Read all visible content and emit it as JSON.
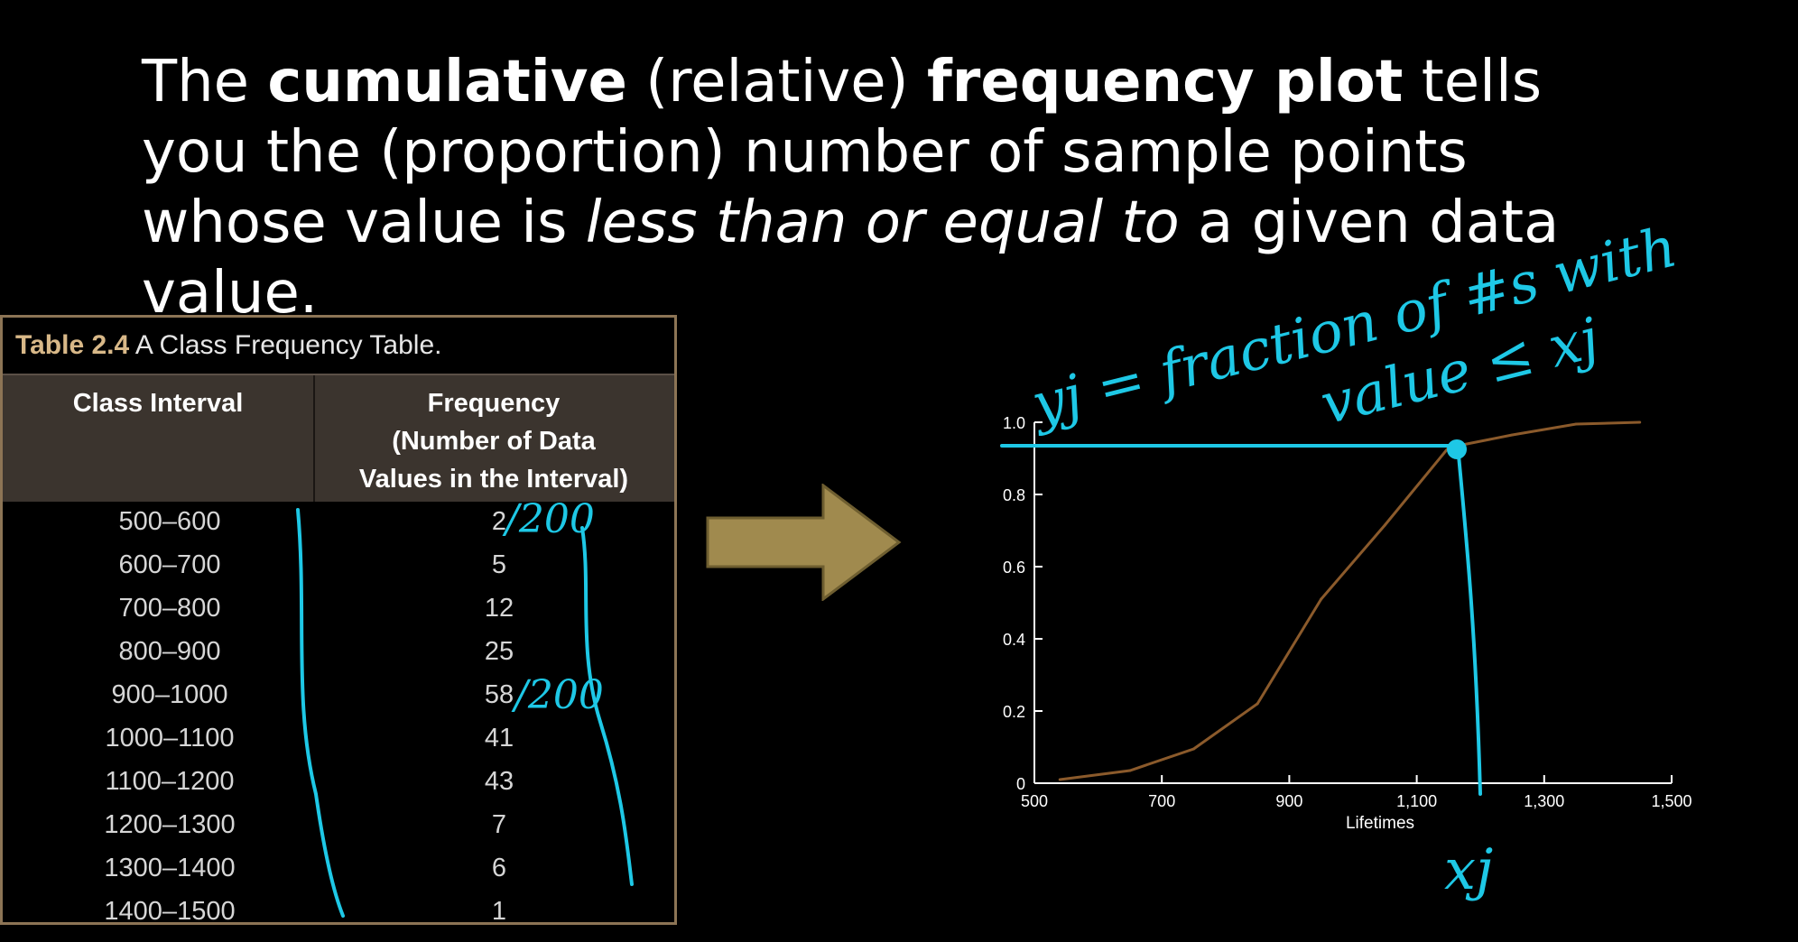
{
  "headline": {
    "p1": "The ",
    "b1": "cumulative",
    "p2": " (relative) ",
    "b2": "frequency plot",
    "p3": " tells you the (proportion) number of sample points whose value is ",
    "i1": "less than or equal to",
    "p4": " a given data value."
  },
  "table": {
    "caption_number": "Table 2.4",
    "caption_text": " A Class Frequency Table.",
    "col1_header": "Class Interval",
    "col2_header_l1": "Frequency",
    "col2_header_l2": "(Number of Data",
    "col2_header_l3": "Values in the Interval)",
    "rows": [
      {
        "interval": "500–600",
        "frequency": "2"
      },
      {
        "interval": "600–700",
        "frequency": "5"
      },
      {
        "interval": "700–800",
        "frequency": "12"
      },
      {
        "interval": "800–900",
        "frequency": "25"
      },
      {
        "interval": "900–1000",
        "frequency": "58"
      },
      {
        "interval": "1000–1100",
        "frequency": "41"
      },
      {
        "interval": "1100–1200",
        "frequency": "43"
      },
      {
        "interval": "1200–1300",
        "frequency": "7"
      },
      {
        "interval": "1300–1400",
        "frequency": "6"
      },
      {
        "interval": "1400–1500",
        "frequency": "1"
      }
    ]
  },
  "handwriting": {
    "n200_a": "/200",
    "n200_b": "/200",
    "yj_def_1": "yj = fraction of #s with",
    "yj_def_2": "value ≤ xj",
    "xj": "xj"
  },
  "colors": {
    "ink": "#1ec8e6",
    "curve": "#8b5a2b",
    "arrow": "#a08a4e",
    "table_border": "#8c7455"
  },
  "chart_data": {
    "type": "line",
    "xlabel": "Lifetimes",
    "ylabel": "",
    "x": [
      540,
      650,
      750,
      850,
      950,
      1050,
      1150,
      1250,
      1350,
      1450
    ],
    "y": [
      0.01,
      0.035,
      0.095,
      0.22,
      0.51,
      0.715,
      0.93,
      0.965,
      0.995,
      1.0
    ],
    "xlim": [
      500,
      1500
    ],
    "ylim": [
      0,
      1.0
    ],
    "xticks": [
      500,
      700,
      900,
      1100,
      1300,
      1500
    ],
    "xtick_labels": [
      "500",
      "700",
      "900",
      "1,100",
      "1,300",
      "1,500"
    ],
    "yticks": [
      0,
      0.2,
      0.4,
      0.6,
      0.8,
      1.0
    ],
    "ytick_labels": [
      "0",
      "0.2",
      "0.4",
      "0.6",
      "0.8",
      "1.0"
    ],
    "grid": false
  }
}
